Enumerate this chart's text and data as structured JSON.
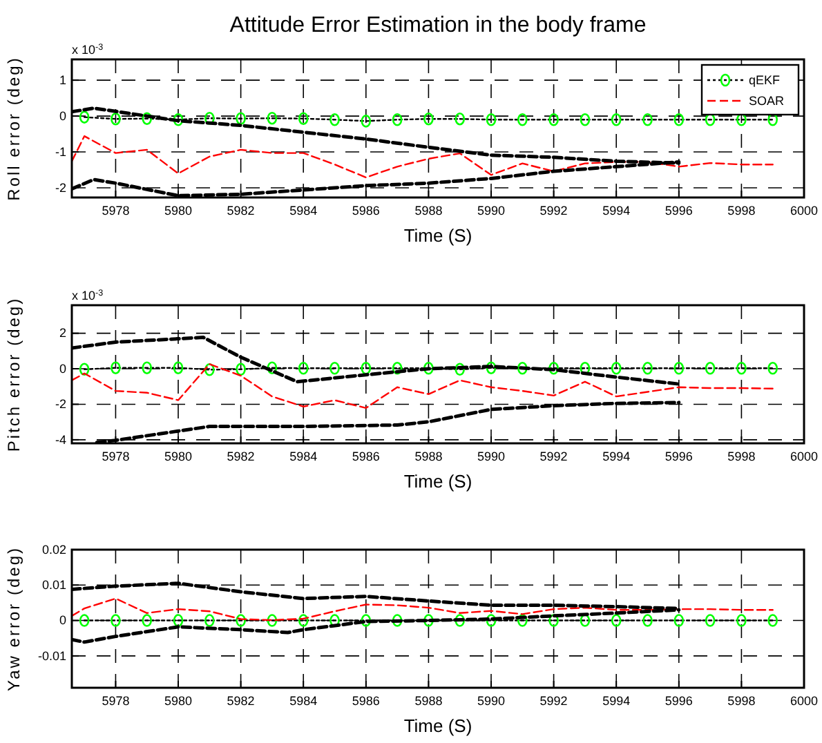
{
  "chart_data": [
    {
      "type": "line",
      "title": "Attitude Error Estimation in the body frame",
      "xlabel": "Time (S)",
      "ylabel": "Roll error (deg)",
      "annotations": [
        "x 10$^{-3}$"
      ],
      "xlim": [
        5976.6,
        6000
      ],
      "xticks": [
        5978,
        5980,
        5982,
        5984,
        5986,
        5988,
        5990,
        5992,
        5994,
        5996,
        5998,
        6000
      ],
      "ylim": [
        -2.27,
        1.58
      ],
      "yticks": [
        1,
        0,
        -1,
        -2
      ],
      "grid": true,
      "legend": "top right",
      "series": [
        {
          "name": "qEKF",
          "color": "#000000",
          "colors": [
            "#00ff00",
            "#00ff00",
            "#00ff00",
            "#00ff00",
            "#00ff00",
            "#00ff00",
            "#00ff00",
            "#00ff00",
            "#00ff00",
            "#00ff00",
            "#00ff00",
            "#00ff00",
            "#00ff00",
            "#00ff00",
            "#00ff00",
            "#00ff00",
            "#00ff00",
            "#00ff00",
            "#00ff00",
            "#00ff00",
            "#00ff00",
            "#00ff00",
            "#00ff00"
          ],
          "marker": "circle",
          "line_style": "dotted",
          "x": [
            5977,
            5978,
            5979,
            5980,
            5981,
            5982,
            5983,
            5984,
            5985,
            5986,
            5987,
            5988,
            5989,
            5990,
            5991,
            5992,
            5993,
            5994,
            5995,
            5996,
            5997,
            5998,
            5999
          ],
          "values": [
            -0.03,
            -0.08,
            -0.07,
            -0.1,
            -0.06,
            -0.07,
            -0.06,
            -0.07,
            -0.1,
            -0.14,
            -0.1,
            -0.08,
            -0.08,
            -0.1,
            -0.1,
            -0.1,
            -0.1,
            -0.1,
            -0.1,
            -0.1,
            -0.1,
            -0.1,
            -0.1
          ]
        },
        {
          "name": "SOAR",
          "color": "#ff0000",
          "marker": "none",
          "line_style": "dashed",
          "x": [
            5976.6,
            5977,
            5978,
            5979,
            5980,
            5981,
            5982,
            5983,
            5984,
            5985,
            5986,
            5987,
            5988,
            5989,
            5990,
            5991,
            5992,
            5993,
            5994,
            5995,
            5996,
            5997,
            5998,
            5999
          ],
          "values": [
            -1.26,
            -0.56,
            -1.03,
            -0.94,
            -1.6,
            -1.13,
            -0.94,
            -1.03,
            -1.03,
            -1.35,
            -1.71,
            -1.41,
            -1.19,
            -1.04,
            -1.64,
            -1.32,
            -1.54,
            -1.32,
            -1.28,
            -1.28,
            -1.41,
            -1.31,
            -1.35,
            -1.35
          ]
        },
        {
          "color": "#000000",
          "marker": "none",
          "line_style": "dashed",
          "x": [
            5976.6,
            5977.3,
            5978,
            5980,
            5982,
            5984,
            5986,
            5988,
            5990,
            5992,
            5994,
            5996
          ],
          "values": [
            0.12,
            0.22,
            0.13,
            -0.13,
            -0.26,
            -0.45,
            -0.64,
            -0.87,
            -1.09,
            -1.15,
            -1.26,
            -1.31
          ]
        },
        {
          "color": "#000000",
          "marker": "none",
          "line_style": "dashed",
          "x": [
            5976.6,
            5977.3,
            5978,
            5980,
            5982,
            5984,
            5986,
            5988,
            5990,
            5992,
            5994,
            5996
          ],
          "values": [
            -2.03,
            -1.77,
            -1.87,
            -2.22,
            -2.18,
            -2.06,
            -1.94,
            -1.87,
            -1.74,
            -1.54,
            -1.41,
            -1.28
          ]
        }
      ]
    },
    {
      "type": "line",
      "xlabel": "Time (S)",
      "ylabel": "Pitch error (deg)",
      "annotations": [
        "x 10$^{-3}$"
      ],
      "xlim": [
        5976.6,
        6000
      ],
      "xticks": [
        5978,
        5980,
        5982,
        5984,
        5986,
        5988,
        5990,
        5992,
        5994,
        5996,
        5998,
        6000
      ],
      "ylim": [
        -4.2,
        3.58
      ],
      "yticks": [
        2,
        0,
        -2,
        -4
      ],
      "grid": true,
      "series": [
        {
          "color": "#000000",
          "colors": [
            "#00ff00",
            "#00ff00",
            "#00ff00",
            "#00ff00",
            "#00ff00",
            "#00ff00",
            "#00ff00",
            "#00ff00",
            "#00ff00",
            "#00ff00",
            "#00ff00",
            "#00ff00",
            "#00ff00",
            "#00ff00",
            "#00ff00",
            "#00ff00",
            "#00ff00",
            "#00ff00",
            "#00ff00",
            "#00ff00",
            "#00ff00",
            "#00ff00",
            "#00ff00"
          ],
          "marker": "circle",
          "line_style": "dotted",
          "x": [
            5977,
            5978,
            5979,
            5980,
            5981,
            5982,
            5983,
            5984,
            5985,
            5986,
            5987,
            5988,
            5989,
            5990,
            5991,
            5992,
            5993,
            5994,
            5995,
            5996,
            5997,
            5998,
            5999
          ],
          "values": [
            -0.03,
            0.05,
            0.05,
            0.05,
            -0.05,
            -0.03,
            0.05,
            0.03,
            0.03,
            0.03,
            0.03,
            0.03,
            -0.03,
            0.05,
            0.03,
            0.03,
            0.03,
            0.03,
            0.03,
            0.03,
            0.03,
            0.03,
            0.03
          ]
        },
        {
          "color": "#ff0000",
          "marker": "none",
          "line_style": "dashed",
          "x": [
            5976.6,
            5977,
            5978,
            5979,
            5980,
            5981,
            5982,
            5983,
            5984,
            5985,
            5986,
            5987,
            5988,
            5989,
            5990,
            5991,
            5992,
            5993,
            5994,
            5995,
            5996,
            5997,
            5998,
            5999
          ],
          "values": [
            -0.65,
            -0.26,
            -1.25,
            -1.35,
            -1.77,
            0.26,
            -0.39,
            -1.56,
            -2.13,
            -1.77,
            -2.21,
            -1.04,
            -1.43,
            -0.65,
            -1.04,
            -1.25,
            -1.51,
            -0.73,
            -1.56,
            -1.3,
            -1.04,
            -1.09,
            -1.09,
            -1.12
          ]
        },
        {
          "color": "#000000",
          "marker": "none",
          "line_style": "dashed",
          "x": [
            5976.6,
            5978,
            5980,
            5980.8,
            5982,
            5983.8,
            5986,
            5988,
            5990,
            5992,
            5994,
            5996
          ],
          "values": [
            1.17,
            1.5,
            1.69,
            1.77,
            0.65,
            -0.73,
            -0.34,
            0,
            0.13,
            -0.05,
            -0.47,
            -0.86
          ]
        },
        {
          "color": "#000000",
          "marker": "none",
          "line_style": "dashed",
          "x": [
            5977.4,
            5978,
            5980,
            5981,
            5984,
            5987,
            5988,
            5990,
            5992,
            5994,
            5996
          ],
          "values": [
            -4.15,
            -4.03,
            -3.51,
            -3.25,
            -3.25,
            -3.17,
            -2.99,
            -2.29,
            -2.08,
            -1.95,
            -1.9
          ]
        }
      ]
    },
    {
      "type": "line",
      "xlabel": "Time (S)",
      "ylabel": "Yaw error (deg)",
      "xlim": [
        5976.6,
        6000
      ],
      "xticks": [
        5978,
        5980,
        5982,
        5984,
        5986,
        5988,
        5990,
        5992,
        5994,
        5996,
        5998,
        6000
      ],
      "ylim": [
        -0.019,
        0.02
      ],
      "yticks": [
        0.02,
        0.01,
        0,
        -0.01
      ],
      "grid": true,
      "series": [
        {
          "color": "#000000",
          "colors": [
            "#00ff00",
            "#00ff00",
            "#00ff00",
            "#00ff00",
            "#00ff00",
            "#00ff00",
            "#00ff00",
            "#00ff00",
            "#00ff00",
            "#00ff00",
            "#00ff00",
            "#00ff00",
            "#00ff00",
            "#00ff00",
            "#00ff00",
            "#00ff00",
            "#00ff00",
            "#00ff00",
            "#00ff00",
            "#00ff00",
            "#00ff00",
            "#00ff00",
            "#00ff00"
          ],
          "marker": "circle",
          "line_style": "dotted",
          "x": [
            5977,
            5978,
            5979,
            5980,
            5981,
            5982,
            5983,
            5984,
            5985,
            5986,
            5987,
            5988,
            5989,
            5990,
            5991,
            5992,
            5993,
            5994,
            5995,
            5996,
            5997,
            5998,
            5999
          ],
          "values": [
            0,
            0,
            0,
            0,
            0,
            0,
            0,
            0,
            0,
            0,
            0,
            0,
            0,
            0,
            0,
            0,
            0,
            0,
            0,
            0,
            0,
            0,
            0
          ]
        },
        {
          "color": "#ff0000",
          "marker": "none",
          "line_style": "dashed",
          "x": [
            5976.6,
            5977,
            5978,
            5979,
            5980,
            5981,
            5982,
            5983,
            5984,
            5985,
            5986,
            5987,
            5988,
            5989,
            5990,
            5991,
            5992,
            5993,
            5994,
            5995,
            5996,
            5997,
            5998,
            5999
          ],
          "values": [
            0.0013,
            0.0034,
            0.0062,
            0.0021,
            0.0032,
            0.0026,
            0.0004,
            0.0001,
            0.0005,
            0.0026,
            0.0045,
            0.0043,
            0.0036,
            0.0021,
            0.0027,
            0.0018,
            0.0032,
            0.0036,
            0.003,
            0.003,
            0.0032,
            0.0032,
            0.003,
            0.003
          ]
        },
        {
          "color": "#000000",
          "marker": "none",
          "line_style": "dashed",
          "x": [
            5976.6,
            5978,
            5980,
            5982,
            5984,
            5986,
            5988,
            5990,
            5992,
            5994,
            5996
          ],
          "values": [
            0.0088,
            0.0097,
            0.0105,
            0.0081,
            0.0062,
            0.0068,
            0.0055,
            0.0043,
            0.0043,
            0.0039,
            0.0034
          ]
        },
        {
          "color": "#000000",
          "marker": "none",
          "line_style": "dashed",
          "x": [
            5976.6,
            5977,
            5978,
            5980,
            5982,
            5983.5,
            5984,
            5986,
            5988,
            5990,
            5992,
            5994,
            5996
          ],
          "values": [
            -0.0054,
            -0.0061,
            -0.0045,
            -0.0018,
            -0.0026,
            -0.0034,
            -0.0026,
            -0.0003,
            0,
            0.0004,
            0.0013,
            0.0021,
            0.003
          ]
        }
      ]
    }
  ]
}
